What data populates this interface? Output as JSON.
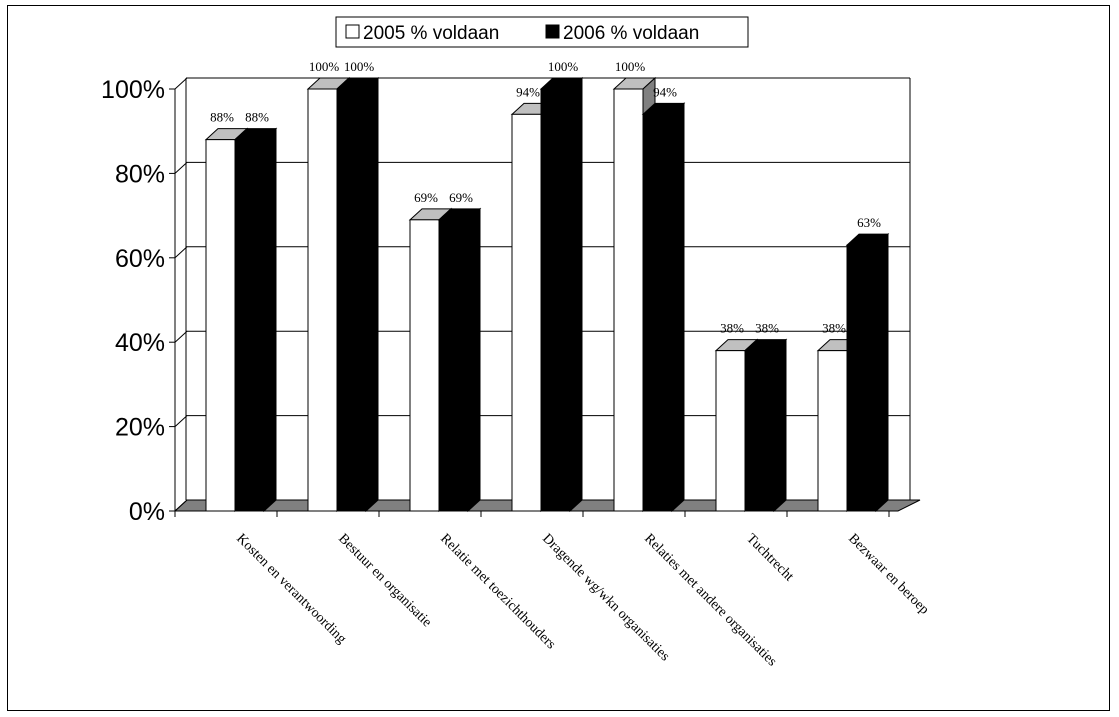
{
  "chart_data": {
    "type": "bar",
    "categories": [
      "Kosten en verantwoording",
      "Bestuur en organisatie",
      "Relatie met toezichthouders",
      "Dragende wg/wkn organisaties",
      "Relaties met andere organisaties",
      "Tuchtrecht",
      "Bezwaar en beroep"
    ],
    "series": [
      {
        "name": "2005 % voldaan",
        "values": [
          88,
          100,
          69,
          94,
          100,
          38,
          38
        ],
        "labels": [
          "88%",
          "100%",
          "69%",
          "94%",
          "100%",
          "38%",
          "38%"
        ],
        "color": "#ffffff"
      },
      {
        "name": "2006 % voldaan",
        "values": [
          88,
          100,
          69,
          100,
          94,
          38,
          63
        ],
        "labels": [
          "88%",
          "100%",
          "69%",
          "100%",
          "94%",
          "38%",
          "63%"
        ],
        "color": "#000000"
      }
    ],
    "yticks": [
      "0%",
      "20%",
      "40%",
      "60%",
      "80%",
      "100%"
    ],
    "ylim": [
      0,
      100
    ],
    "grid": true,
    "legend": "top-center",
    "floor_color": "#808080"
  }
}
